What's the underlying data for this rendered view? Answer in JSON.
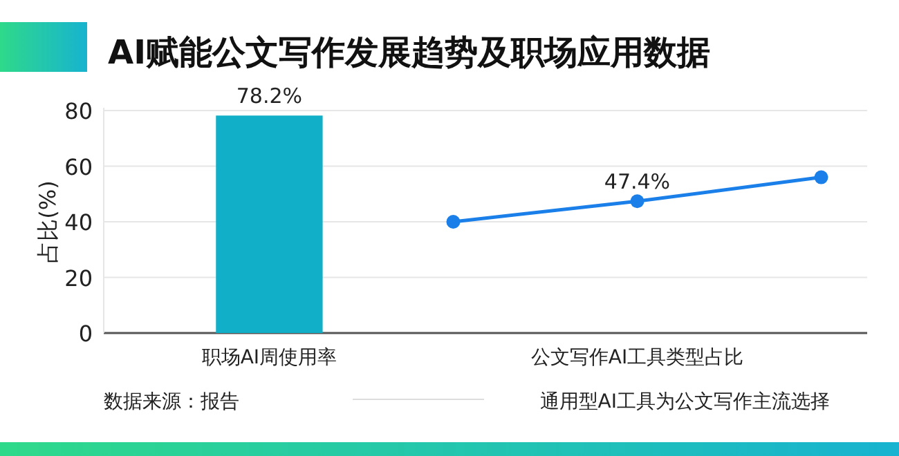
{
  "chart_data": {
    "type": "bar",
    "title": "AI赋能公文写作发展趋势及职场应用数据",
    "ylabel": "占比(%)",
    "categories": [
      "职场AI周使用率",
      null,
      "公文写作AI工具类型占比",
      null
    ],
    "series": [
      {
        "color": "#12b0c8",
        "values": [
          78.2,
          null,
          null,
          null
        ],
        "value_labels": [
          "78.2%",
          null,
          null,
          null
        ]
      },
      {
        "type": "line",
        "color": "#1a7fe8",
        "values": [
          null,
          40,
          47.4,
          56
        ],
        "value_labels": [
          null,
          null,
          "47.4%",
          null
        ]
      }
    ],
    "ylim": [
      0,
      80
    ],
    "yticks": [
      0,
      20,
      40,
      60,
      80
    ],
    "grid": "y",
    "marker": "circle",
    "line_style": "solid",
    "annotations": [
      "数据来源：报告",
      "通用型AI工具为公文写作主流选择"
    ]
  }
}
